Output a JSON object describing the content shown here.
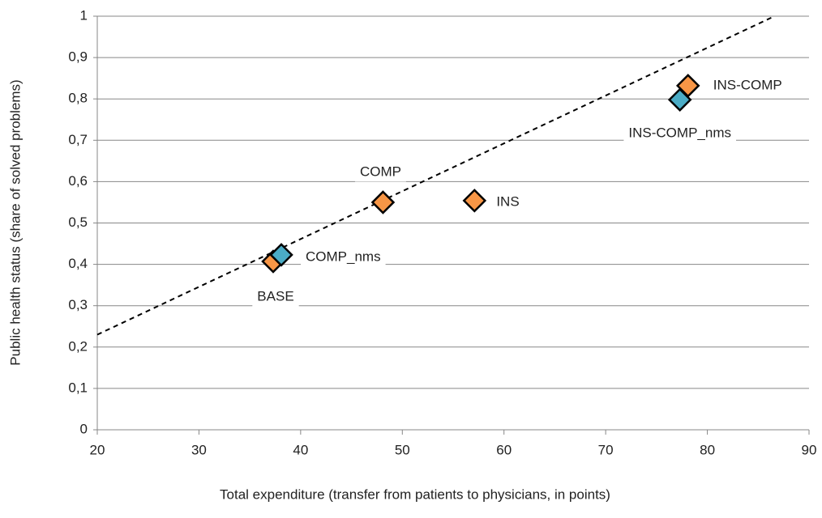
{
  "chart_data": {
    "type": "scatter",
    "x_label": "Total expenditure (transfer from patients to physicians, in points)",
    "y_label": "Public health status (share of solved problems)",
    "xlim": [
      20,
      90
    ],
    "xticks": [
      20,
      30,
      40,
      50,
      60,
      70,
      80,
      90
    ],
    "ylim": [
      0,
      1
    ],
    "yticks": [
      0,
      {
        "value": 0.1,
        "label": "0,1"
      },
      {
        "value": 0.2,
        "label": "0,2"
      },
      {
        "value": 0.3,
        "label": "0,3"
      },
      {
        "value": 0.4,
        "label": "0,4"
      },
      {
        "value": 0.5,
        "label": "0,5"
      },
      {
        "value": 0.6,
        "label": "0,6"
      },
      {
        "value": 0.7,
        "label": "0,7"
      },
      {
        "value": 0.8,
        "label": "0,8"
      },
      {
        "value": 0.9,
        "label": "0,9"
      },
      1
    ],
    "grid": true,
    "series": [
      {
        "name": "BASE",
        "color": "#f79646",
        "x": [
          37.3
        ],
        "values": [
          0.407
        ]
      },
      {
        "name": "COMP_nms",
        "color": "#4bacc6",
        "x": [
          38.1
        ],
        "values": [
          0.423
        ]
      },
      {
        "name": "COMP",
        "color": "#f79646",
        "x": [
          48.1
        ],
        "values": [
          0.55
        ]
      },
      {
        "name": "INS",
        "color": "#f79646",
        "x": [
          57.1
        ],
        "values": [
          0.554
        ]
      },
      {
        "name": "INS-COMP",
        "color": "#f79646",
        "x": [
          78.1
        ],
        "values": [
          0.832
        ]
      },
      {
        "name": "INS-COMP_nms",
        "color": "#4bacc6",
        "x": [
          77.3
        ],
        "values": [
          0.798
        ]
      }
    ],
    "trendline": {
      "x": [
        20,
        86.6
      ],
      "values": [
        0.23,
        1
      ]
    }
  }
}
